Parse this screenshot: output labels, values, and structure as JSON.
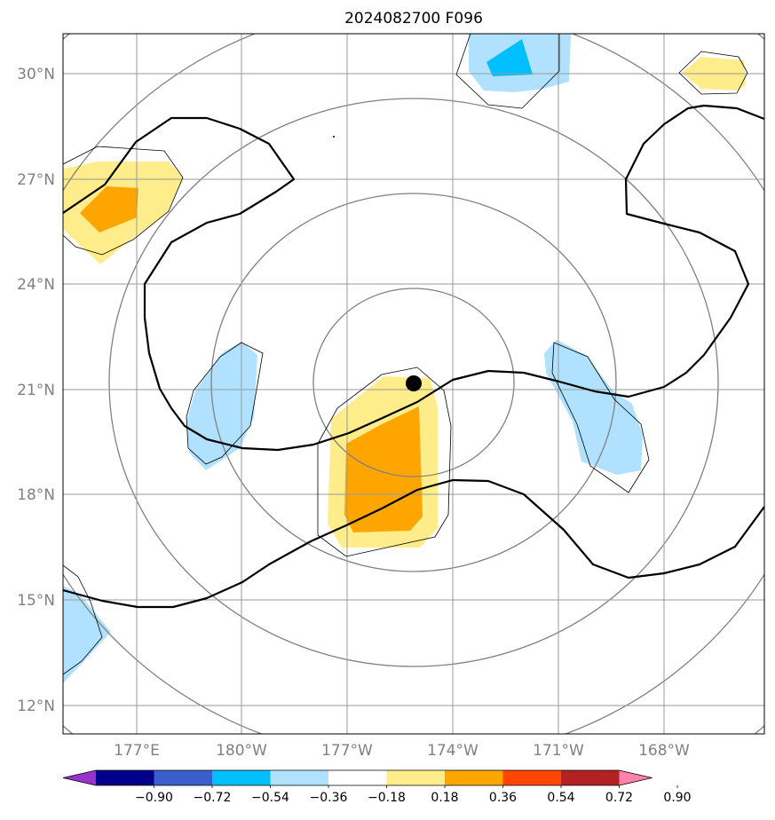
{
  "title": "2024082700 F096",
  "map": {
    "lat_labels": [
      "30°N",
      "27°N",
      "24°N",
      "21°N",
      "18°N",
      "15°N",
      "12°N"
    ],
    "lon_labels": [
      "177°E",
      "180°W",
      "177°W",
      "174°W",
      "171°W",
      "168°W"
    ],
    "center_marker": "storm-center-dot",
    "colors": {
      "gridline": "#9a9a9a",
      "range_ring": "#808080",
      "contour": "#000000"
    }
  },
  "colorbar": {
    "tick_labels": [
      "−0.90",
      "−0.72",
      "−0.54",
      "−0.36",
      "−0.18",
      "0.18",
      "0.36",
      "0.54",
      "0.72",
      "0.90"
    ],
    "colors": [
      "#9932CC",
      "#00008B",
      "#3A5FCD",
      "#00BFFF",
      "#B0E2FF",
      "#FFFFFF",
      "#FFEC8B",
      "#FFA500",
      "#FF4500",
      "#B22222",
      "#FF82AB"
    ],
    "extend": "both"
  }
}
